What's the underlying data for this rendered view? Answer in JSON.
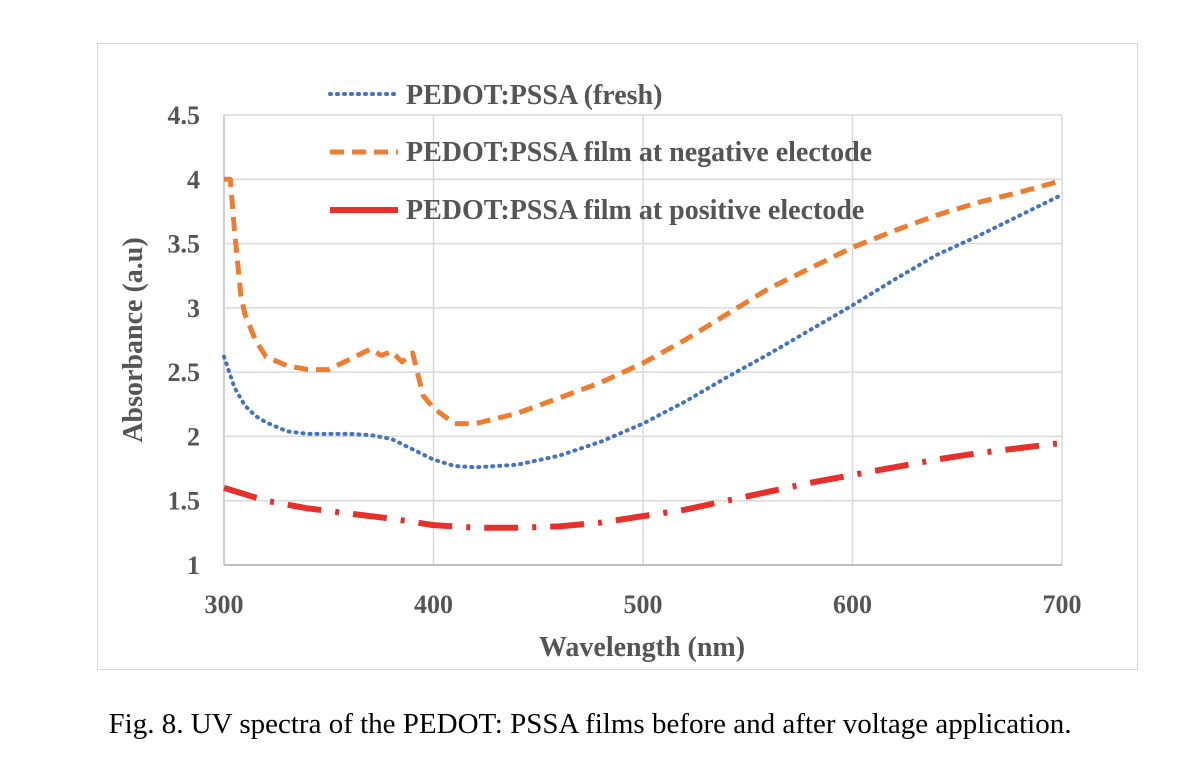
{
  "caption": "Fig. 8. UV spectra of the PEDOT: PSSA films before and after voltage application.",
  "chart_data": {
    "type": "line",
    "xlabel": "Wavelength (nm)",
    "ylabel": "Absorbance (a.u)",
    "xlim": [
      300,
      700
    ],
    "ylim": [
      1,
      4.5
    ],
    "xticks": [
      "300",
      "400",
      "500",
      "600",
      "700"
    ],
    "yticks": [
      "1",
      "1.5",
      "2",
      "2.5",
      "3",
      "3.5",
      "4",
      "4.5"
    ],
    "grid": true,
    "legend_position": "top",
    "series": [
      {
        "name": "PEDOT:PSSA (fresh)",
        "color": "#4472C4",
        "style": "dotted",
        "x": [
          300,
          305,
          310,
          315,
          320,
          330,
          340,
          350,
          360,
          370,
          380,
          390,
          400,
          410,
          420,
          440,
          460,
          480,
          500,
          520,
          540,
          560,
          580,
          600,
          620,
          640,
          660,
          680,
          700
        ],
        "y": [
          2.62,
          2.38,
          2.24,
          2.16,
          2.11,
          2.04,
          2.02,
          2.02,
          2.02,
          2.01,
          1.98,
          1.9,
          1.82,
          1.77,
          1.76,
          1.78,
          1.85,
          1.96,
          2.1,
          2.27,
          2.46,
          2.64,
          2.83,
          3.02,
          3.22,
          3.41,
          3.56,
          3.72,
          3.88
        ]
      },
      {
        "name": "PEDOT:PSSA film at negative electode",
        "color": "#ED7D31",
        "style": "dashed",
        "x": [
          300,
          303,
          305,
          308,
          310,
          315,
          320,
          330,
          340,
          350,
          360,
          365,
          370,
          375,
          380,
          385,
          390,
          395,
          400,
          410,
          420,
          440,
          460,
          480,
          500,
          520,
          540,
          560,
          580,
          600,
          620,
          640,
          660,
          680,
          700
        ],
        "y": [
          4.0,
          4.0,
          3.6,
          3.1,
          2.95,
          2.75,
          2.62,
          2.55,
          2.52,
          2.52,
          2.6,
          2.64,
          2.68,
          2.63,
          2.66,
          2.58,
          2.65,
          2.32,
          2.22,
          2.1,
          2.1,
          2.18,
          2.3,
          2.42,
          2.57,
          2.75,
          2.95,
          3.15,
          3.31,
          3.47,
          3.6,
          3.72,
          3.82,
          3.9,
          3.99
        ]
      },
      {
        "name": "PEDOT:PSSA film at positive electode",
        "color": "#E8302A",
        "style": "dash-dot",
        "x": [
          300,
          320,
          340,
          360,
          380,
          400,
          420,
          440,
          460,
          480,
          500,
          520,
          540,
          560,
          580,
          600,
          620,
          640,
          660,
          680,
          700
        ],
        "y": [
          1.6,
          1.5,
          1.44,
          1.4,
          1.36,
          1.31,
          1.29,
          1.29,
          1.3,
          1.33,
          1.38,
          1.43,
          1.5,
          1.57,
          1.64,
          1.7,
          1.76,
          1.82,
          1.87,
          1.91,
          1.95
        ]
      }
    ]
  }
}
